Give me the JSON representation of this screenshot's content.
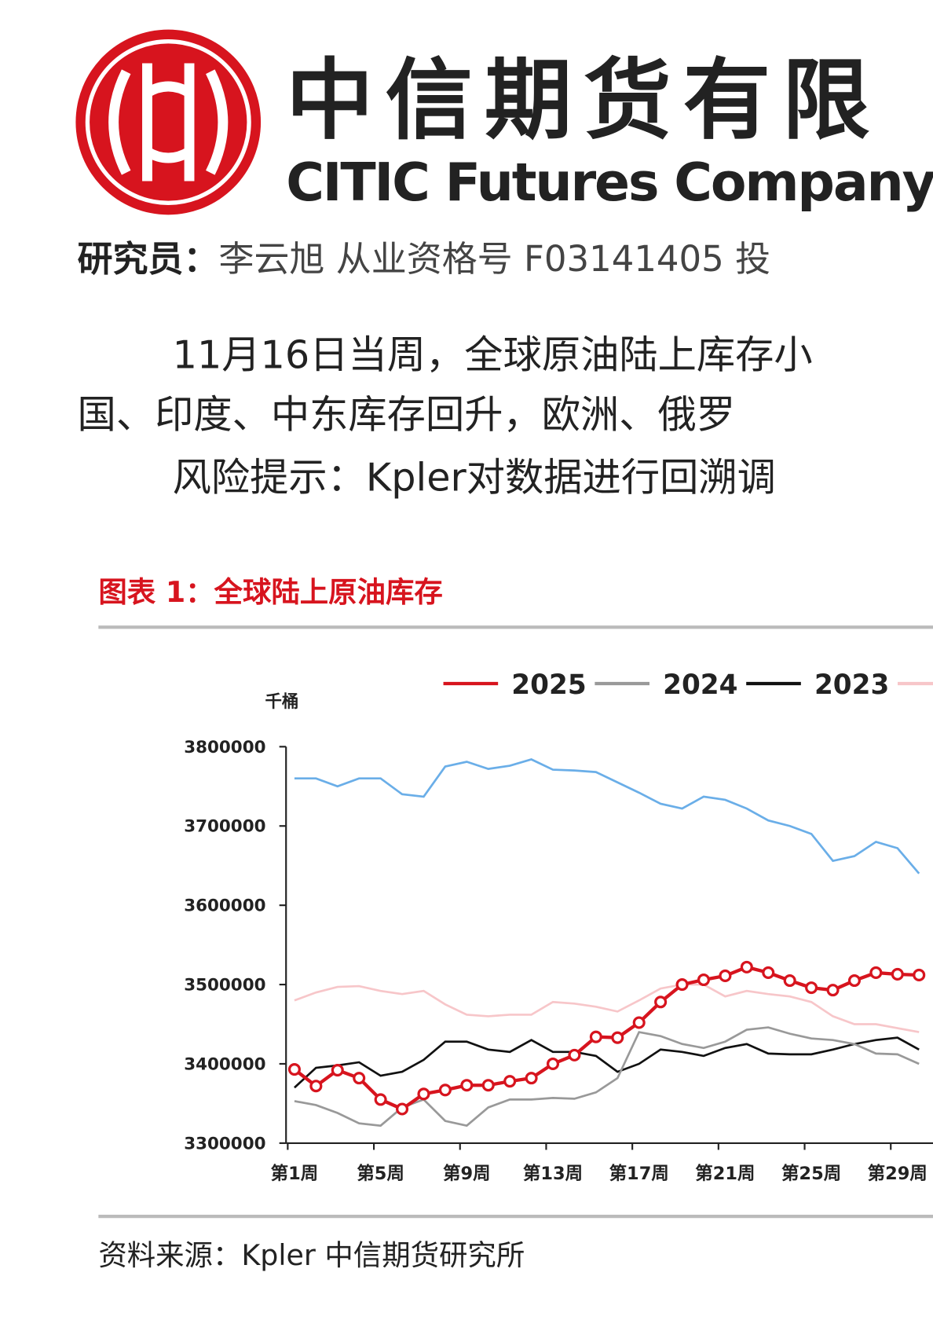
{
  "header": {
    "company_cn": "中信期货有限",
    "company_en": "CITIC Futures Company L"
  },
  "byline": {
    "label": "研究员：",
    "text": "李云旭  从业资格号 F03141405 投"
  },
  "paragraphs": [
    {
      "lines": [
        "11月16日当周，全球原油陆上库存小",
        "国、印度、中东库存回升，欧洲、俄罗"
      ]
    },
    {
      "lines": [
        "风险提示：Kpler对数据进行回溯调"
      ]
    }
  ],
  "figure": {
    "title": "图表 1：全球陆上原油库存",
    "source": "资料来源：Kpler 中信期货研究所"
  },
  "chart_data": {
    "type": "line",
    "y_label": "千桶",
    "categories": [
      "第1周",
      null,
      null,
      null,
      "第5周",
      null,
      null,
      null,
      "第9周",
      null,
      null,
      null,
      "第13周",
      null,
      null,
      null,
      "第17周",
      null,
      null,
      null,
      "第21周",
      null,
      null,
      null,
      "第25周",
      null,
      null,
      null,
      "第29周",
      null
    ],
    "ylim": [
      3300000,
      3800000
    ],
    "yticks": [
      3300000,
      3400000,
      3500000,
      3600000,
      3700000,
      3800000
    ],
    "series": [
      {
        "color": "#6aaee8",
        "values": [
          3760000,
          3760000,
          3750000,
          3760000,
          3760000,
          3740000,
          3737000,
          3775000,
          3781000,
          3772000,
          3776000,
          3784000,
          3771000,
          3770000,
          3768000,
          3755000,
          3742000,
          3728000,
          3722000,
          3737000,
          3733000,
          3722000,
          3707000,
          3700000,
          3690000,
          3656000,
          3662000,
          3680000,
          3672000,
          3640000
        ]
      },
      {
        "color": "#f7c6c9",
        "values": [
          3480000,
          3490000,
          3497000,
          3498000,
          3492000,
          3488000,
          3492000,
          3475000,
          3462000,
          3460000,
          3462000,
          3462000,
          3478000,
          3476000,
          3472000,
          3466000,
          3480000,
          3495000,
          3500000,
          3500000,
          3485000,
          3492000,
          3488000,
          3485000,
          3478000,
          3460000,
          3450000,
          3450000,
          3445000,
          3440000
        ]
      },
      {
        "name": "2023",
        "color": "#111111",
        "values": [
          3370000,
          3395000,
          3398000,
          3402000,
          3385000,
          3390000,
          3405000,
          3428000,
          3428000,
          3418000,
          3415000,
          3430000,
          3415000,
          3415000,
          3410000,
          3390000,
          3400000,
          3418000,
          3415000,
          3410000,
          3420000,
          3425000,
          3413000,
          3412000,
          3412000,
          3418000,
          3425000,
          3430000,
          3433000,
          3418000
        ]
      },
      {
        "name": "2024",
        "color": "#999999",
        "values": [
          3353000,
          3348000,
          3338000,
          3325000,
          3322000,
          3345000,
          3355000,
          3328000,
          3322000,
          3345000,
          3355000,
          3355000,
          3357000,
          3356000,
          3364000,
          3382000,
          3440000,
          3435000,
          3425000,
          3420000,
          3428000,
          3443000,
          3446000,
          3438000,
          3432000,
          3430000,
          3425000,
          3413000,
          3412000,
          3400000
        ]
      },
      {
        "name": "2025",
        "color": "#d7141e",
        "markers": true,
        "values": [
          3393000,
          3372000,
          3392000,
          3382000,
          3355000,
          3343000,
          3362000,
          3367000,
          3373000,
          3373000,
          3378000,
          3382000,
          3400000,
          3411000,
          3434000,
          3433000,
          3452000,
          3478000,
          3500000,
          3506000,
          3511000,
          3522000,
          3515000,
          3505000,
          3496000,
          3493000,
          3505000,
          3515000,
          3513000,
          3512000
        ]
      }
    ],
    "legend_order": [
      4,
      3,
      2,
      1
    ]
  }
}
